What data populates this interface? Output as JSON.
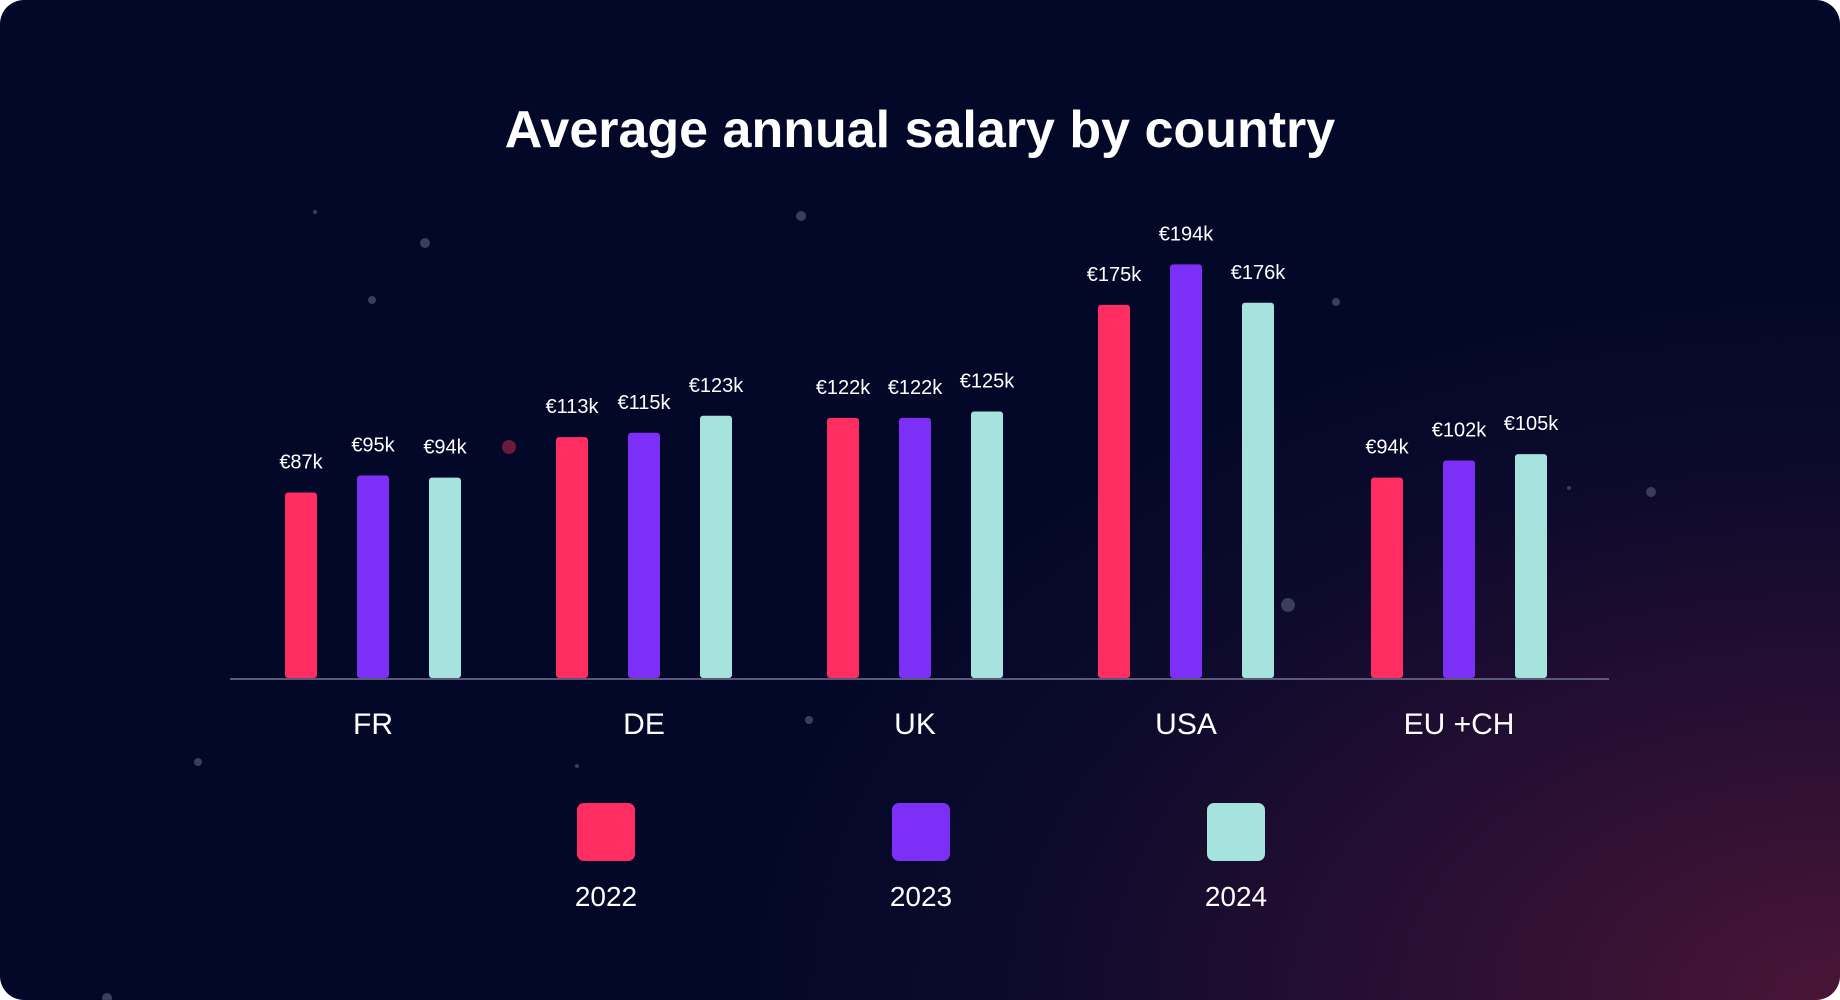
{
  "chart_data": {
    "type": "bar",
    "title": "Average annual salary by country",
    "categories": [
      "FR",
      "DE",
      "UK",
      "USA",
      "EU +CH"
    ],
    "series": [
      {
        "name": "2022",
        "color": "#ff2d62",
        "values": [
          87,
          113,
          122,
          175,
          94
        ],
        "labels": [
          "€87k",
          "€113k",
          "€122k",
          "€175k",
          "€94k"
        ]
      },
      {
        "name": "2023",
        "color": "#7b2ff7",
        "values": [
          95,
          115,
          122,
          194,
          102
        ],
        "labels": [
          "€95k",
          "€115k",
          "€122k",
          "€194k",
          "€102k"
        ]
      },
      {
        "name": "2024",
        "color": "#a6e3df",
        "values": [
          94,
          123,
          125,
          176,
          105
        ],
        "labels": [
          "€94k",
          "€123k",
          "€125k",
          "€176k",
          "€105k"
        ]
      }
    ],
    "unit": "€k",
    "ylim": [
      0,
      318
    ],
    "grid": false,
    "legend_position": "bottom",
    "background": "#030828",
    "axis_color": "#5a5a78"
  }
}
